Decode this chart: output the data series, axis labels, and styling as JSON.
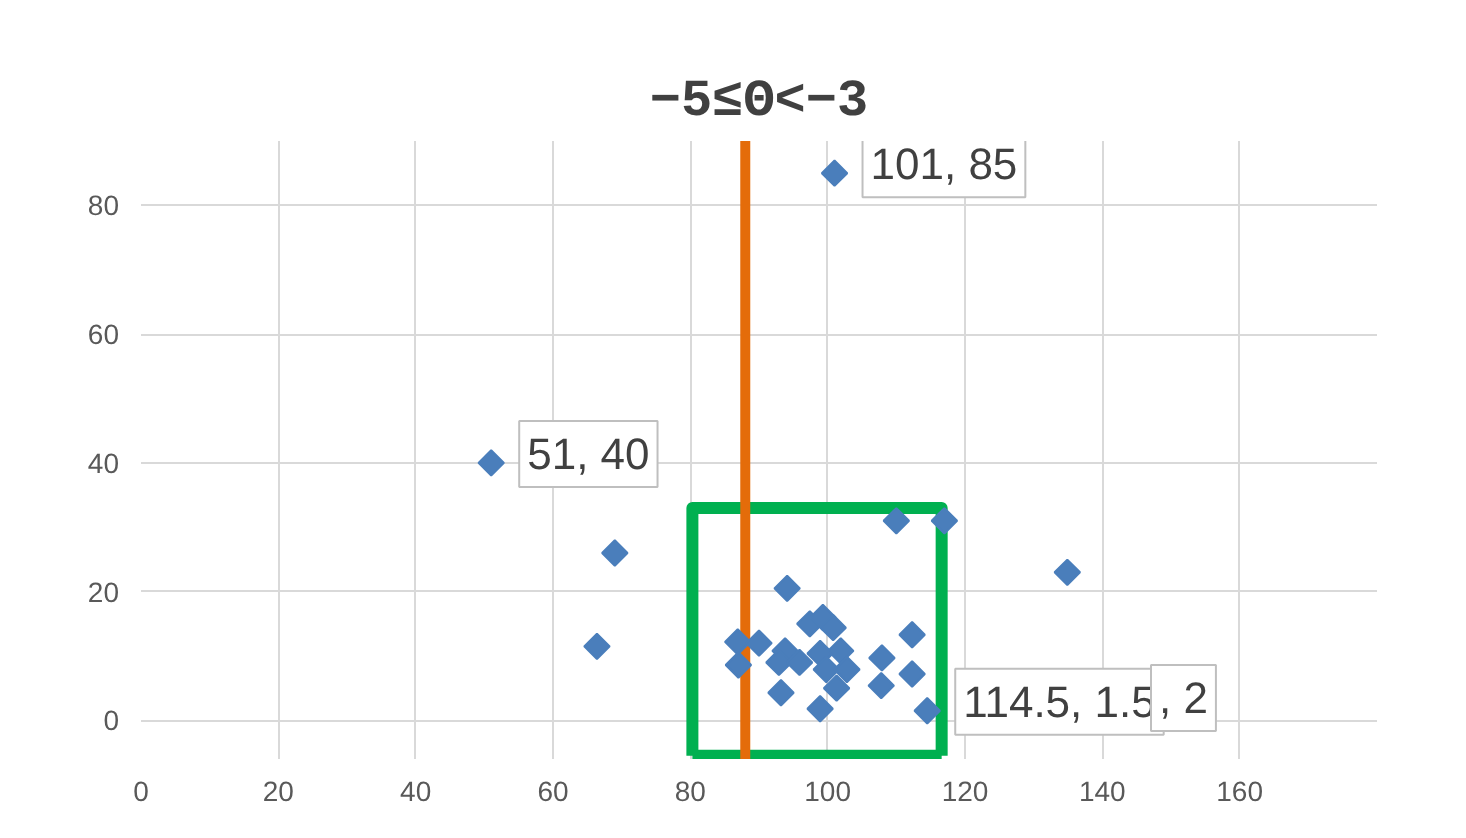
{
  "chart_data": {
    "type": "scatter",
    "title": "−5≤Θ<−3",
    "xlim": [
      0,
      180
    ],
    "xticks": [
      0,
      20,
      40,
      60,
      80,
      100,
      120,
      140,
      160
    ],
    "ylim": [
      -6,
      90
    ],
    "yticks": [
      0,
      20,
      40,
      60,
      80
    ],
    "grid": true,
    "marker": "diamond",
    "series": [
      {
        "color": "#4a7ebb",
        "x": [
          51,
          101,
          69,
          66.4,
          134.9,
          114.5,
          110,
          117,
          94.1,
          86.9,
          87,
          90,
          93.8,
          97.4,
          99.3,
          100.8,
          92.9,
          95.9,
          98.9,
          101.9,
          99.8,
          102.8,
          93.2,
          98.9,
          101.3,
          107.9,
          107.8,
          112.3,
          112.3
        ],
        "values": [
          40,
          85,
          26,
          11.5,
          23,
          1.5,
          31,
          31,
          20.5,
          12.2,
          8.6,
          12,
          10.8,
          15,
          16,
          14.4,
          9,
          9,
          10.4,
          10.8,
          7.9,
          7.9,
          4.3,
          1.8,
          5,
          9.7,
          5.4,
          13.3,
          7.2
        ],
        "value_labels": [
          "51, 40",
          "101, 85",
          null,
          null,
          null,
          "114.5, 1.5",
          null,
          null,
          null,
          null,
          null,
          null,
          null,
          null,
          null,
          null,
          null,
          null,
          null,
          null,
          null,
          null,
          null,
          null,
          null,
          null,
          null,
          null,
          null
        ]
      },
      {
        "type": "line",
        "marker": "none",
        "color": "#00b050",
        "x": [
          80.3,
          80.3,
          116.6,
          116.6
        ],
        "values": [
          -5.5,
          33,
          33,
          -5.5
        ]
      },
      {
        "type": "line",
        "marker": "none",
        "color": "#00b050",
        "x": [
          80.3,
          116.6
        ],
        "values": [
          -5.5,
          -5.5
        ]
      }
    ],
    "ref_lines": [
      {
        "axis": "x",
        "value": 88,
        "color": "#e46c0a"
      }
    ],
    "annotations": [
      ", 2"
    ]
  }
}
